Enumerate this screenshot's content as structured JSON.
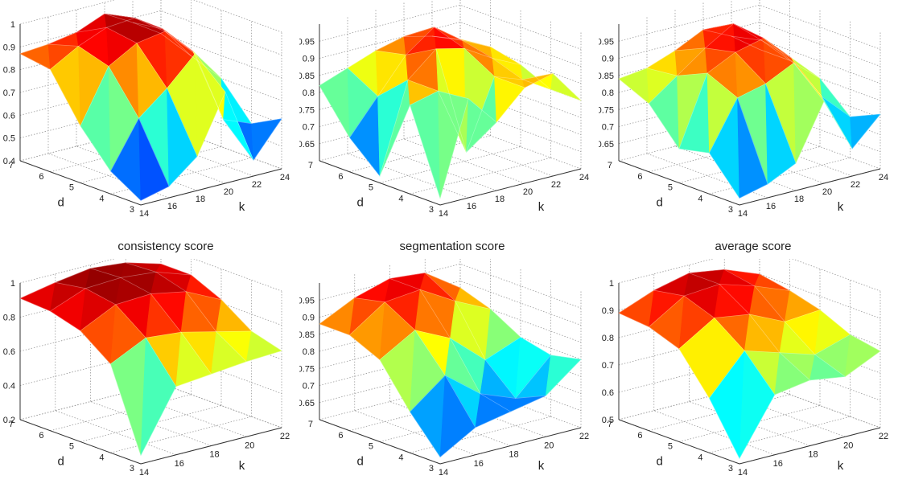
{
  "captions": [
    "consistency score",
    "segmentation score",
    "average score"
  ],
  "chart_data": [
    {
      "type": "surface",
      "row": "top",
      "col": 0,
      "title": "consistency score",
      "xlabel": "k",
      "ylabel": "d",
      "k_values": [
        14,
        16,
        18,
        20,
        22,
        24
      ],
      "d_values": [
        3,
        4,
        5,
        6,
        7
      ],
      "z_ticks": [
        "0.4",
        "0.5",
        "0.6",
        "0.7",
        "0.8",
        "0.9",
        "1"
      ],
      "zlim": [
        0.4,
        1.0
      ],
      "z": [
        [
          0.42,
          0.45,
          0.55,
          0.8,
          0.47,
          0.62
        ],
        [
          0.5,
          0.7,
          0.8,
          0.92,
          0.6,
          0.55
        ],
        [
          0.65,
          0.88,
          0.95,
          0.97,
          0.85,
          0.7
        ],
        [
          0.85,
          0.92,
          0.97,
          0.98,
          0.9,
          0.75
        ],
        [
          0.87,
          0.88,
          0.9,
          0.95,
          0.88,
          0.8
        ]
      ]
    },
    {
      "type": "surface",
      "row": "top",
      "col": 1,
      "title": "segmentation score",
      "xlabel": "k",
      "ylabel": "d",
      "k_values": [
        14,
        16,
        18,
        20,
        22,
        24
      ],
      "d_values": [
        3,
        4,
        5,
        6,
        7
      ],
      "z_ticks": [
        "0.65",
        "0.7",
        "0.75",
        "0.8",
        "0.85",
        "0.9",
        "0.95"
      ],
      "zlim": [
        0.6,
        1.0
      ],
      "z": [
        [
          0.62,
          0.89,
          0.8,
          0.88,
          0.9,
          0.8
        ],
        [
          0.86,
          0.88,
          0.68,
          0.88,
          0.85,
          0.8
        ],
        [
          0.62,
          0.88,
          0.95,
          0.93,
          0.88,
          0.84
        ],
        [
          0.7,
          0.8,
          0.9,
          0.96,
          0.9,
          0.86
        ],
        [
          0.82,
          0.85,
          0.88,
          0.9,
          0.88,
          0.85
        ]
      ]
    },
    {
      "type": "surface",
      "row": "top",
      "col": 2,
      "title": "average score",
      "xlabel": "k",
      "ylabel": "d",
      "k_values": [
        14,
        16,
        18,
        20,
        22,
        24
      ],
      "d_values": [
        3,
        4,
        5,
        6,
        7
      ],
      "z_ticks": [
        "0.65",
        "0.7",
        "0.75",
        "0.8",
        "0.85",
        "0.9",
        "0.95"
      ],
      "zlim": [
        0.6,
        1.0
      ],
      "z": [
        [
          0.62,
          0.64,
          0.68,
          0.84,
          0.68,
          0.76
        ],
        [
          0.72,
          0.86,
          0.88,
          0.92,
          0.8,
          0.72
        ],
        [
          0.7,
          0.9,
          0.94,
          0.96,
          0.88,
          0.8
        ],
        [
          0.8,
          0.86,
          0.92,
          0.97,
          0.9,
          0.82
        ],
        [
          0.84,
          0.85,
          0.88,
          0.92,
          0.88,
          0.82
        ]
      ]
    },
    {
      "type": "surface",
      "row": "bottom",
      "col": 0,
      "title": "",
      "xlabel": "k",
      "ylabel": "d",
      "k_values": [
        14,
        16,
        18,
        20,
        22
      ],
      "d_values": [
        3,
        4,
        5,
        6,
        7
      ],
      "z_ticks": [
        "0.2",
        "0.4",
        "0.6",
        "0.8",
        "1"
      ],
      "zlim": [
        0.2,
        1.0
      ],
      "z": [
        [
          0.25,
          0.6,
          0.62,
          0.64,
          0.65
        ],
        [
          0.72,
          0.82,
          0.8,
          0.75,
          0.7
        ],
        [
          0.85,
          0.95,
          0.96,
          0.92,
          0.82
        ],
        [
          0.9,
          0.98,
          0.99,
          0.97,
          0.9
        ],
        [
          0.91,
          0.95,
          0.98,
          0.96,
          0.9
        ]
      ]
    },
    {
      "type": "surface",
      "row": "bottom",
      "col": 1,
      "title": "",
      "xlabel": "k",
      "ylabel": "d",
      "k_values": [
        14,
        16,
        18,
        20,
        22
      ],
      "d_values": [
        3,
        4,
        5,
        6,
        7
      ],
      "z_ticks": [
        "0.65",
        "0.7",
        "0.75",
        "0.8",
        "0.85",
        "0.9",
        "0.95"
      ],
      "zlim": [
        0.6,
        1.0
      ],
      "z": [
        [
          0.62,
          0.68,
          0.7,
          0.72,
          0.8
        ],
        [
          0.72,
          0.8,
          0.72,
          0.68,
          0.78
        ],
        [
          0.84,
          0.9,
          0.85,
          0.76,
          0.8
        ],
        [
          0.88,
          0.95,
          0.96,
          0.9,
          0.85
        ],
        [
          0.88,
          0.93,
          0.96,
          0.95,
          0.88
        ]
      ]
    },
    {
      "type": "surface",
      "row": "bottom",
      "col": 2,
      "title": "",
      "xlabel": "k",
      "ylabel": "d",
      "k_values": [
        14,
        16,
        18,
        20,
        22
      ],
      "d_values": [
        3,
        4,
        5,
        6,
        7
      ],
      "z_ticks": [
        "0.5",
        "0.6",
        "0.7",
        "0.8",
        "0.9",
        "1"
      ],
      "zlim": [
        0.5,
        1.0
      ],
      "z": [
        [
          0.52,
          0.72,
          0.74,
          0.72,
          0.78
        ],
        [
          0.7,
          0.84,
          0.8,
          0.76,
          0.8
        ],
        [
          0.84,
          0.92,
          0.9,
          0.84,
          0.85
        ],
        [
          0.88,
          0.96,
          0.97,
          0.93,
          0.88
        ],
        [
          0.89,
          0.94,
          0.97,
          0.95,
          0.9
        ]
      ]
    }
  ]
}
